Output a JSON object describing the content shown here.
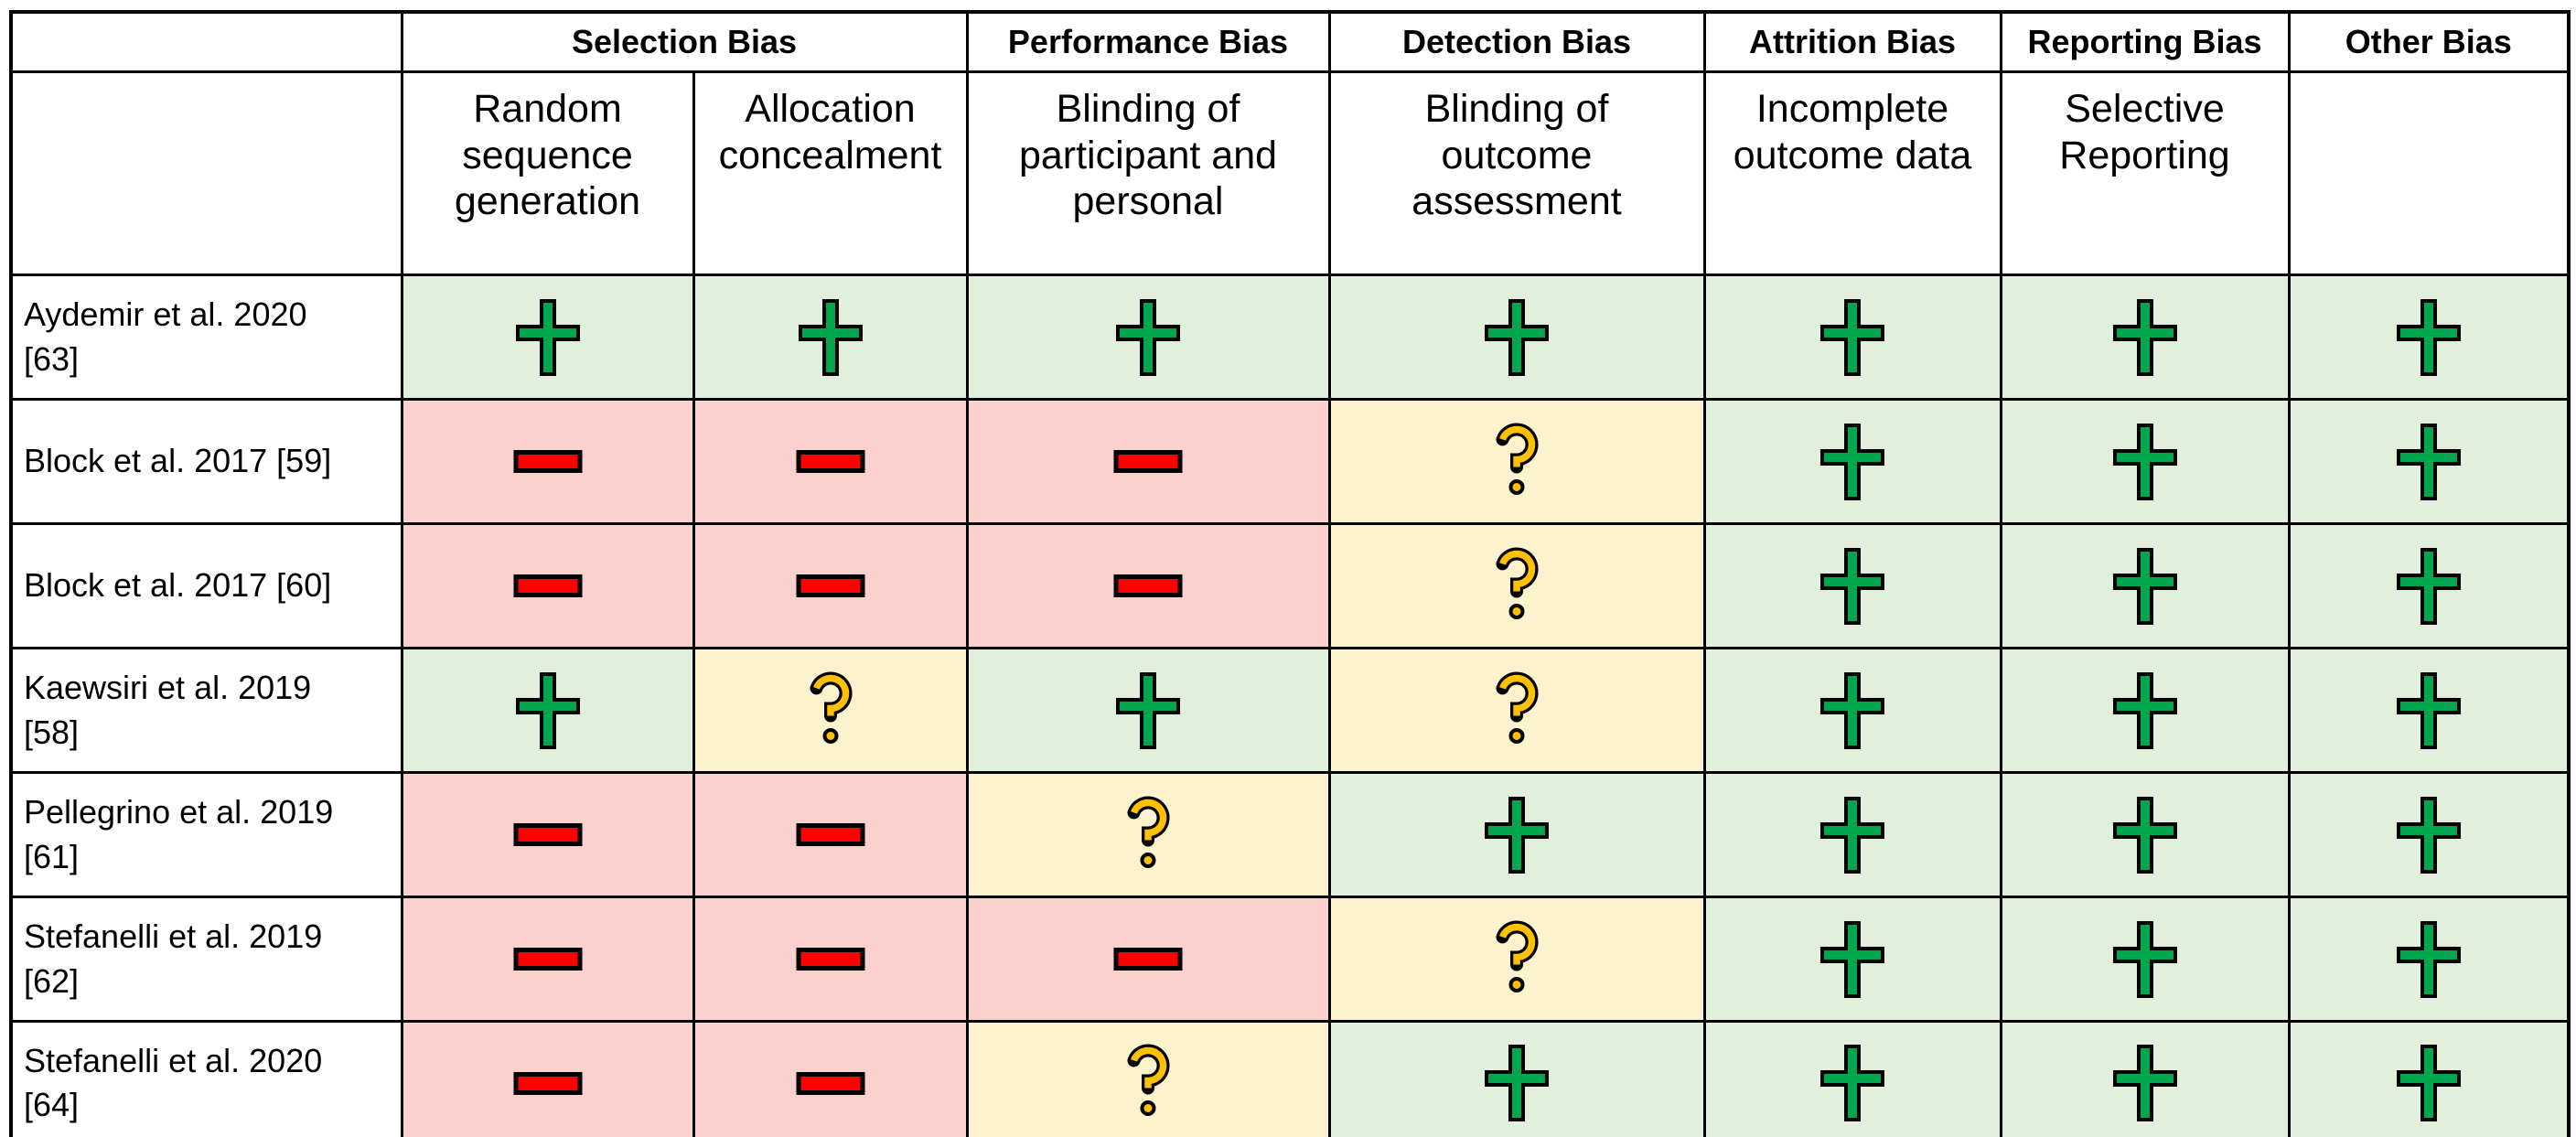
{
  "table": {
    "bias_groups": [
      {
        "label": "Selection Bias",
        "span": 2
      },
      {
        "label": "Performance Bias",
        "span": 1
      },
      {
        "label": "Detection Bias",
        "span": 1
      },
      {
        "label": "Attrition Bias",
        "span": 1
      },
      {
        "label": "Reporting Bias",
        "span": 1
      },
      {
        "label": "Other Bias",
        "span": 1
      }
    ],
    "domains": [
      "Random\nsequence\ngeneration",
      "Allocation\nconcealment",
      "Blinding of\nparticipant and\npersonal",
      "Blinding of\noutcome\nassessment",
      "Incomplete\noutcome data",
      "Selective\nReporting",
      ""
    ],
    "rows": [
      {
        "study": "Aydemir et al. 2020\n[63]",
        "ratings": [
          "plus",
          "plus",
          "plus",
          "plus",
          "plus",
          "plus",
          "plus"
        ]
      },
      {
        "study": "Block et al. 2017 [59]",
        "ratings": [
          "minus",
          "minus",
          "minus",
          "question",
          "plus",
          "plus",
          "plus"
        ]
      },
      {
        "study": "Block et al. 2017 [60]",
        "ratings": [
          "minus",
          "minus",
          "minus",
          "question",
          "plus",
          "plus",
          "plus"
        ]
      },
      {
        "study": "Kaewsiri et al. 2019\n[58]",
        "ratings": [
          "plus",
          "question",
          "plus",
          "question",
          "plus",
          "plus",
          "plus"
        ]
      },
      {
        "study": "Pellegrino et al. 2019\n[61]",
        "ratings": [
          "minus",
          "minus",
          "question",
          "plus",
          "plus",
          "plus",
          "plus"
        ]
      },
      {
        "study": "Stefanelli et al. 2019\n[62]",
        "ratings": [
          "minus",
          "minus",
          "minus",
          "question",
          "plus",
          "plus",
          "plus"
        ]
      },
      {
        "study": "Stefanelli et al.  2020\n[64]",
        "ratings": [
          "minus",
          "minus",
          "question",
          "plus",
          "plus",
          "plus",
          "plus"
        ]
      }
    ],
    "colors": {
      "border": "#000000",
      "plus": {
        "symbol": "#00A74E",
        "cell": "#E2EFDA"
      },
      "minus": {
        "symbol": "#FF0000",
        "cell": "#FBD1CD"
      },
      "question": {
        "symbol": "#FFC000",
        "cell": "#FCF2CE"
      }
    }
  }
}
